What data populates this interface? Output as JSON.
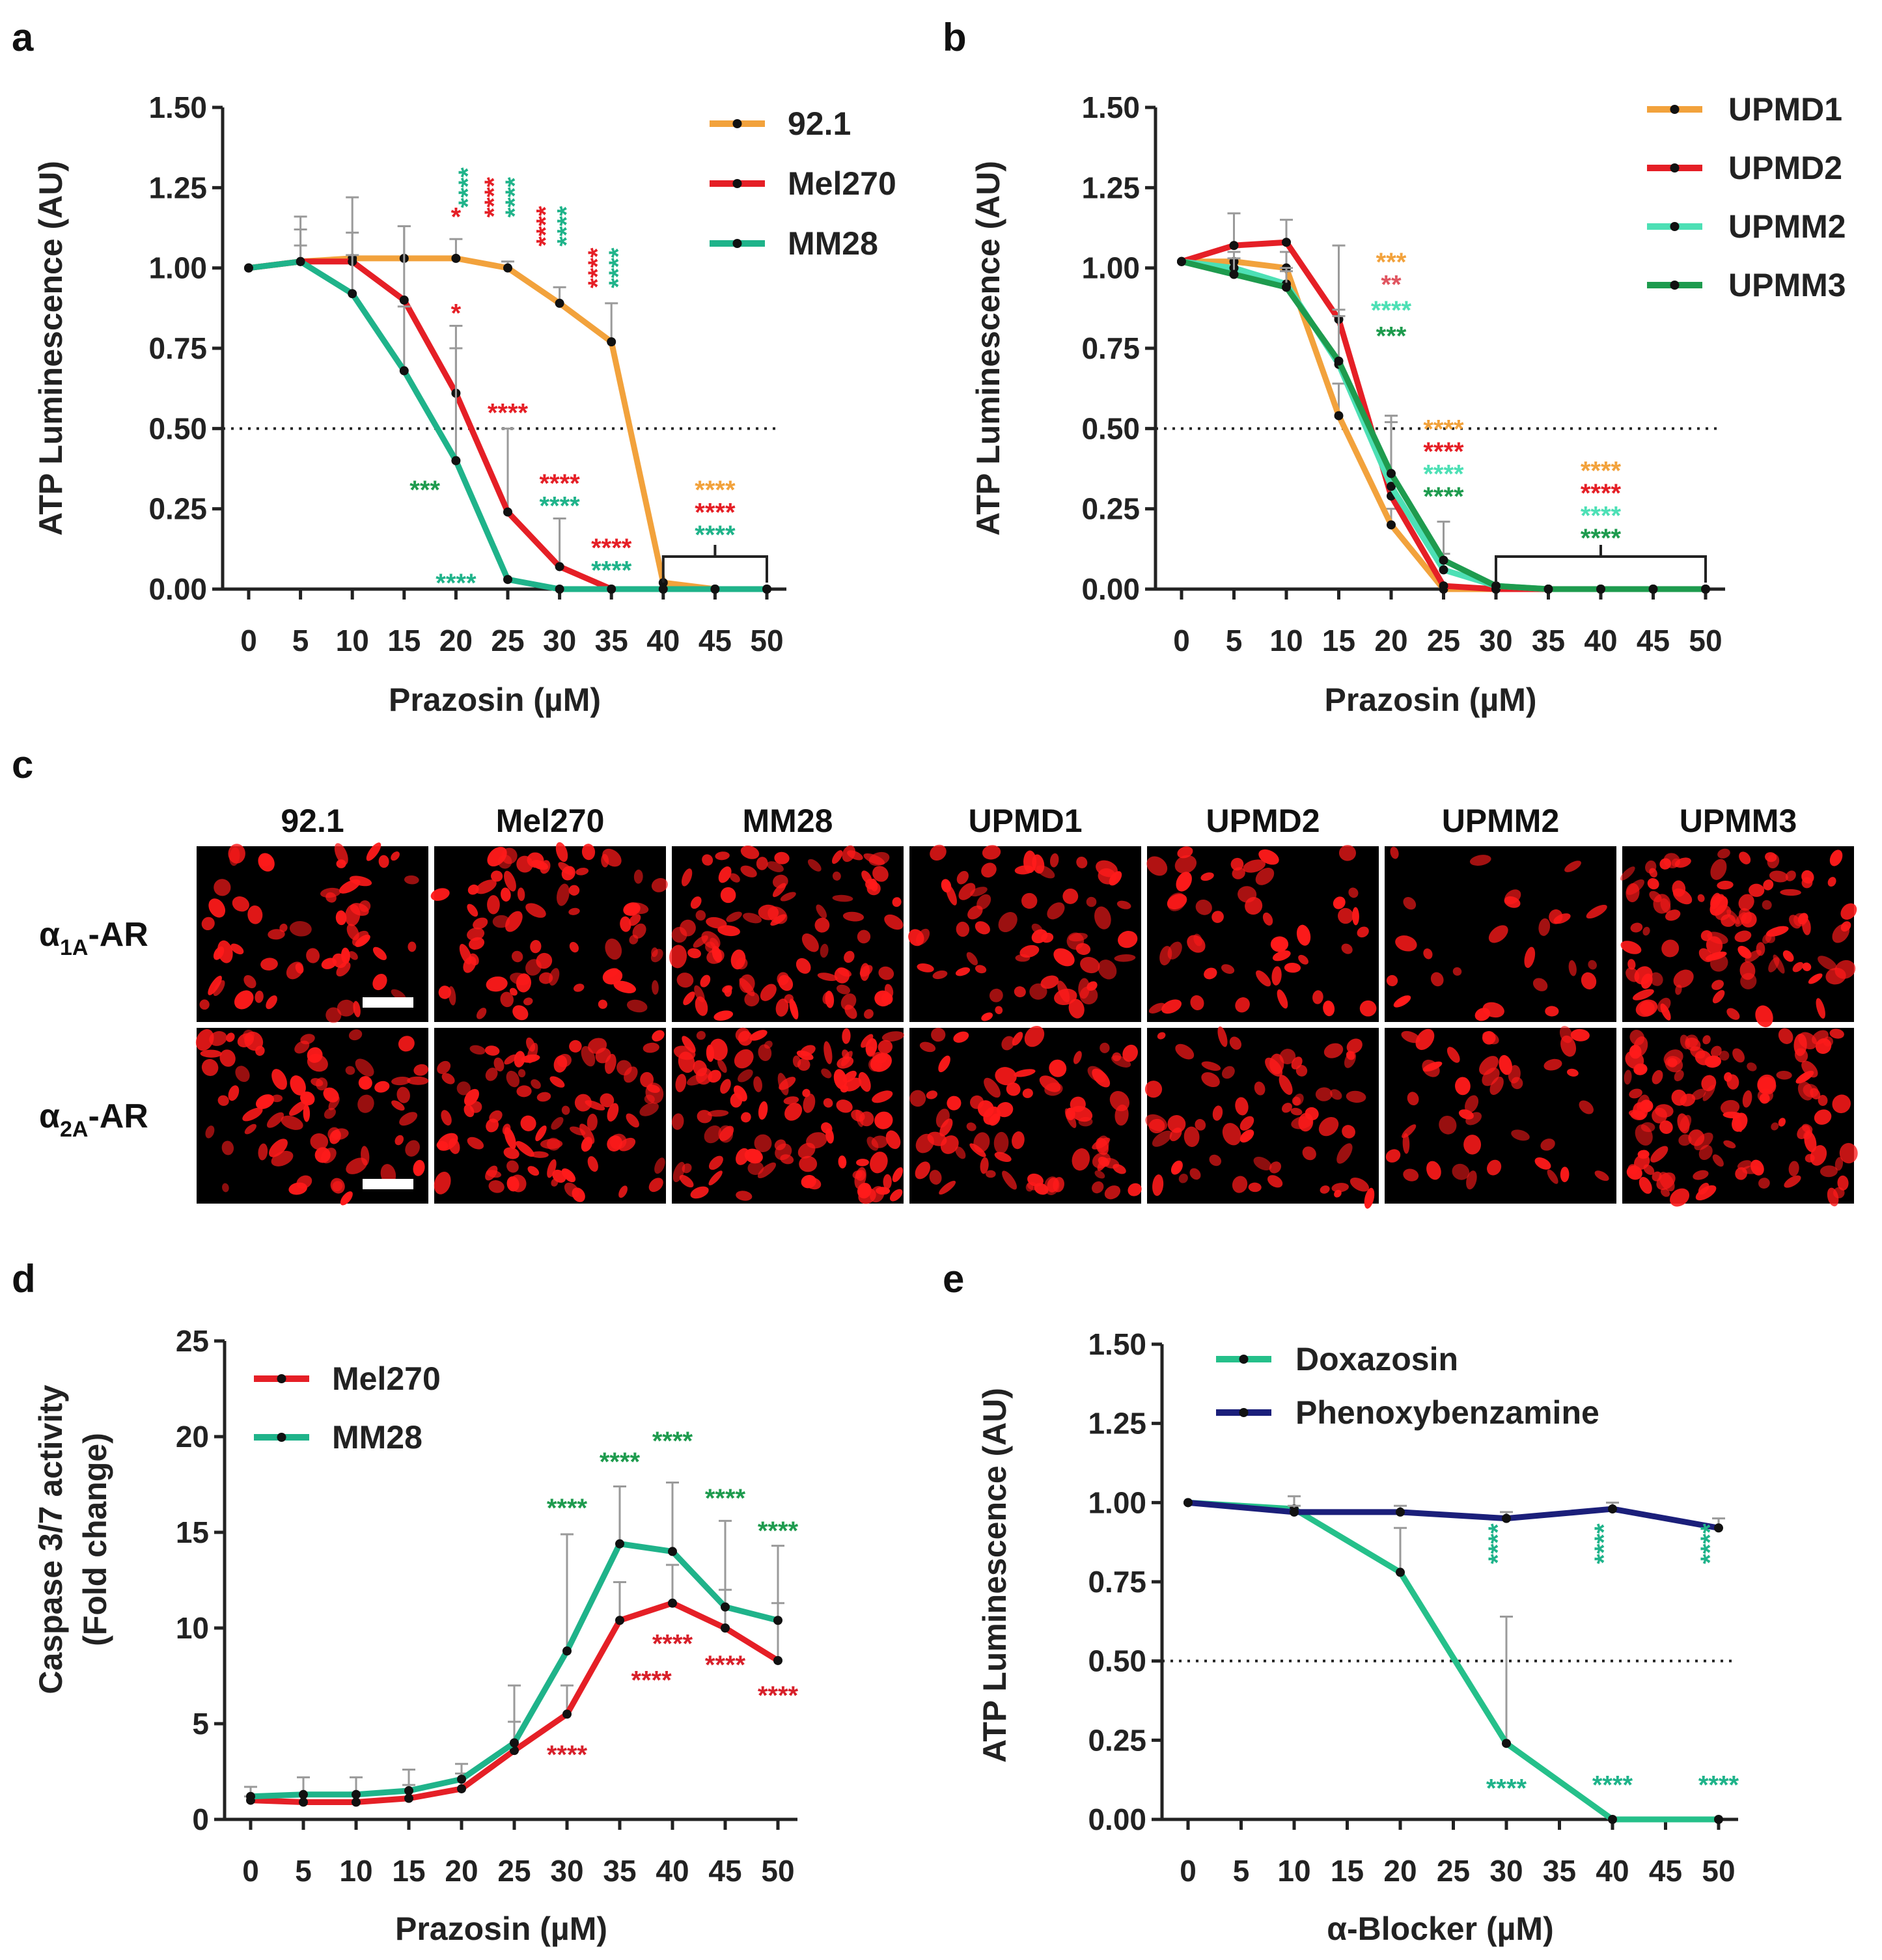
{
  "figure": {
    "panels": [
      {
        "letter": "a"
      },
      {
        "letter": "b"
      },
      {
        "letter": "c"
      },
      {
        "letter": "d"
      },
      {
        "letter": "e"
      }
    ]
  },
  "colors": {
    "92.1": "#f2a23c",
    "Mel270": "#e51f26",
    "MM28": "#1fb38a",
    "UPMD1": "#f2a23c",
    "UPMD2": "#e51f26",
    "UPMM2": "#4de0b5",
    "UPMM3": "#1e9b4e",
    "Doxazosin": "#25c08a",
    "Phenoxybenzamine": "#1b1f7a",
    "MM28_sig_d": "#1e9b4e",
    "Mel270_sig_d": "#d8202a",
    "MM28_sig_a": "#1e9b4e"
  },
  "chart_data": [
    {
      "panel": "a",
      "type": "line",
      "xlabel": "Prazosin (µM)",
      "ylabel": "ATP Luminescence (AU)",
      "x": [
        0,
        5,
        10,
        15,
        20,
        25,
        30,
        35,
        40,
        45,
        50
      ],
      "x_tick_labels": [
        "0",
        "5",
        "10",
        "15",
        "20",
        "25",
        "30",
        "35",
        "40",
        "45",
        "50"
      ],
      "ylim": [
        0,
        1.5
      ],
      "y_ticks": [
        0,
        0.25,
        0.5,
        0.75,
        1.0,
        1.25,
        1.5
      ],
      "y_tick_labels": [
        "0.00",
        "0.25",
        "0.50",
        "0.75",
        "1.00",
        "1.25",
        "1.50"
      ],
      "reference_line": 0.5,
      "legend": [
        "92.1",
        "Mel270",
        "MM28"
      ],
      "series": [
        {
          "name": "92.1",
          "values": [
            1.0,
            1.02,
            1.03,
            1.03,
            1.03,
            1.0,
            0.89,
            0.77,
            0.02,
            0.0,
            0.0
          ],
          "errors": [
            0,
            0.05,
            0.08,
            0.1,
            0.06,
            0.02,
            0.05,
            0.12,
            0,
            0,
            0
          ]
        },
        {
          "name": "Mel270",
          "values": [
            1.0,
            1.02,
            1.02,
            0.9,
            0.61,
            0.24,
            0.07,
            0.0,
            0.0,
            0.0,
            0.0
          ],
          "errors": [
            0,
            0.1,
            0.2,
            0.23,
            0.21,
            0.26,
            0.15,
            0,
            0,
            0,
            0
          ]
        },
        {
          "name": "MM28",
          "values": [
            1.0,
            1.02,
            0.92,
            0.68,
            0.4,
            0.03,
            0.0,
            0.0,
            0.0,
            0.0,
            0.0
          ],
          "errors": [
            0,
            0.14,
            0.12,
            0.2,
            0.35,
            0,
            0,
            0,
            0,
            0,
            0
          ]
        }
      ],
      "annotations": [
        {
          "text": "*",
          "x": 20,
          "y": 1.16,
          "color": "#e51f26"
        },
        {
          "text": "****",
          "x": 22,
          "y": 1.25,
          "color": "#1fb38a",
          "vertical": true
        },
        {
          "text": "****",
          "x": 24.5,
          "y": 1.22,
          "color": "#e51f26",
          "vertical": true
        },
        {
          "text": "****",
          "x": 26.5,
          "y": 1.22,
          "color": "#1fb38a",
          "vertical": true
        },
        {
          "text": "****",
          "x": 29.5,
          "y": 1.13,
          "color": "#e51f26",
          "vertical": true
        },
        {
          "text": "****",
          "x": 31.5,
          "y": 1.13,
          "color": "#1fb38a",
          "vertical": true
        },
        {
          "text": "****",
          "x": 34.5,
          "y": 1.0,
          "color": "#e51f26",
          "vertical": true
        },
        {
          "text": "****",
          "x": 36.5,
          "y": 1.0,
          "color": "#1fb38a",
          "vertical": true
        },
        {
          "text": "*",
          "x": 20,
          "y": 0.86,
          "color": "#e51f26"
        },
        {
          "text": "****",
          "x": 25,
          "y": 0.55,
          "color": "#e51f26"
        },
        {
          "text": "***",
          "x": 17,
          "y": 0.31,
          "color": "#1e9b4e"
        },
        {
          "text": "****",
          "x": 30,
          "y": 0.33,
          "color": "#e51f26"
        },
        {
          "text": "****",
          "x": 30,
          "y": 0.26,
          "color": "#1fb38a"
        },
        {
          "text": "****",
          "x": 35,
          "y": 0.13,
          "color": "#e51f26"
        },
        {
          "text": "****",
          "x": 35,
          "y": 0.06,
          "color": "#1fb38a"
        },
        {
          "text": "****",
          "x": 20,
          "y": 0.02,
          "color": "#1fb38a"
        },
        {
          "text": "****",
          "x": 45,
          "y": 0.31,
          "color": "#f2a23c"
        },
        {
          "text": "****",
          "x": 45,
          "y": 0.24,
          "color": "#e51f26"
        },
        {
          "text": "****",
          "x": 45,
          "y": 0.17,
          "color": "#1fb38a"
        }
      ],
      "bracket": {
        "x_from": 40,
        "x_to": 50
      }
    },
    {
      "panel": "b",
      "type": "line",
      "xlabel": "Prazosin (µM)",
      "ylabel": "ATP Luminescence (AU)",
      "x": [
        0,
        5,
        10,
        15,
        20,
        25,
        30,
        35,
        40,
        45,
        50
      ],
      "x_tick_labels": [
        "0",
        "5",
        "10",
        "15",
        "20",
        "25",
        "30",
        "35",
        "40",
        "45",
        "50"
      ],
      "ylim": [
        0,
        1.5
      ],
      "y_ticks": [
        0,
        0.25,
        0.5,
        0.75,
        1.0,
        1.25,
        1.5
      ],
      "y_tick_labels": [
        "0.00",
        "0.25",
        "0.50",
        "0.75",
        "1.00",
        "1.25",
        "1.50"
      ],
      "reference_line": 0.5,
      "legend": [
        "UPMD1",
        "UPMD2",
        "UPMM2",
        "UPMM3"
      ],
      "series": [
        {
          "name": "UPMD1",
          "values": [
            1.02,
            1.02,
            1.0,
            0.54,
            0.2,
            0.0,
            0.0,
            0.0,
            0.0,
            0.0,
            0.0
          ],
          "errors": [
            0,
            0.03,
            0.05,
            0.1,
            0.05,
            0,
            0,
            0,
            0,
            0,
            0
          ]
        },
        {
          "name": "UPMD2",
          "values": [
            1.02,
            1.07,
            1.08,
            0.84,
            0.29,
            0.01,
            0.0,
            0.0,
            0.0,
            0.0,
            0.0
          ],
          "errors": [
            0,
            0.1,
            0.07,
            0.23,
            0.25,
            0,
            0,
            0,
            0,
            0,
            0
          ]
        },
        {
          "name": "UPMM2",
          "values": [
            1.02,
            1.0,
            0.95,
            0.7,
            0.32,
            0.06,
            0.01,
            0.0,
            0.0,
            0.0,
            0.0
          ],
          "errors": [
            0,
            0.05,
            0.05,
            0.15,
            0.2,
            0.05,
            0,
            0,
            0,
            0,
            0
          ]
        },
        {
          "name": "UPMM3",
          "values": [
            1.02,
            0.98,
            0.94,
            0.71,
            0.36,
            0.09,
            0.01,
            0.0,
            0.0,
            0.0,
            0.0
          ],
          "errors": [
            0,
            0.05,
            0.05,
            0.16,
            0.18,
            0.12,
            0,
            0,
            0,
            0,
            0
          ]
        }
      ],
      "annotations": [
        {
          "text": "***",
          "x": 20,
          "y": 1.02,
          "color": "#f2a23c"
        },
        {
          "text": "**",
          "x": 20,
          "y": 0.95,
          "color": "#e05560"
        },
        {
          "text": "****",
          "x": 20,
          "y": 0.87,
          "color": "#4de0b5"
        },
        {
          "text": "***",
          "x": 20,
          "y": 0.79,
          "color": "#1e9b4e"
        },
        {
          "text": "****",
          "x": 25,
          "y": 0.5,
          "color": "#f2a23c"
        },
        {
          "text": "****",
          "x": 25,
          "y": 0.43,
          "color": "#e51f26"
        },
        {
          "text": "****",
          "x": 25,
          "y": 0.36,
          "color": "#4de0b5"
        },
        {
          "text": "****",
          "x": 25,
          "y": 0.29,
          "color": "#1e9b4e"
        },
        {
          "text": "****",
          "x": 40,
          "y": 0.37,
          "color": "#f2a23c"
        },
        {
          "text": "****",
          "x": 40,
          "y": 0.3,
          "color": "#e51f26"
        },
        {
          "text": "****",
          "x": 40,
          "y": 0.23,
          "color": "#4de0b5"
        },
        {
          "text": "****",
          "x": 40,
          "y": 0.16,
          "color": "#1e9b4e"
        }
      ],
      "bracket": {
        "x_from": 30,
        "x_to": 50
      }
    },
    {
      "panel": "d",
      "type": "line",
      "xlabel": "Prazosin (µM)",
      "ylabel_lines": [
        "Caspase 3/7 activity",
        "(Fold change)"
      ],
      "x": [
        0,
        5,
        10,
        15,
        20,
        25,
        30,
        35,
        40,
        45,
        50
      ],
      "x_tick_labels": [
        "0",
        "5",
        "10",
        "15",
        "20",
        "25",
        "30",
        "35",
        "40",
        "45",
        "50"
      ],
      "ylim": [
        0,
        25
      ],
      "y_ticks": [
        0,
        5,
        10,
        15,
        20,
        25
      ],
      "y_tick_labels": [
        "0",
        "5",
        "10",
        "15",
        "20",
        "25"
      ],
      "legend": [
        "Mel270",
        "MM28"
      ],
      "series": [
        {
          "name": "Mel270",
          "values": [
            1.0,
            0.9,
            0.9,
            1.1,
            1.6,
            3.6,
            5.5,
            10.4,
            11.3,
            10.0,
            8.3
          ],
          "errors": [
            0.2,
            0.4,
            0.5,
            0.7,
            0.8,
            1.5,
            1.5,
            2.0,
            2.0,
            2.0,
            3.0
          ]
        },
        {
          "name": "MM28",
          "values": [
            1.2,
            1.3,
            1.3,
            1.5,
            2.1,
            4.0,
            8.8,
            14.4,
            14.0,
            11.1,
            10.4
          ],
          "errors": [
            0.5,
            0.9,
            0.9,
            1.1,
            0.8,
            3.0,
            6.1,
            3.0,
            3.6,
            4.5,
            3.9
          ]
        }
      ],
      "annotations": [
        {
          "text": "****",
          "x": 30,
          "y": 16.3,
          "color": "#1e9b4e"
        },
        {
          "text": "****",
          "x": 35,
          "y": 18.7,
          "color": "#1e9b4e"
        },
        {
          "text": "****",
          "x": 40,
          "y": 19.8,
          "color": "#1e9b4e"
        },
        {
          "text": "****",
          "x": 45,
          "y": 16.8,
          "color": "#1e9b4e"
        },
        {
          "text": "****",
          "x": 50,
          "y": 15.1,
          "color": "#1e9b4e"
        },
        {
          "text": "****",
          "x": 30,
          "y": 3.4,
          "color": "#d8202a"
        },
        {
          "text": "****",
          "x": 38,
          "y": 7.3,
          "color": "#d8202a"
        },
        {
          "text": "****",
          "x": 40,
          "y": 9.2,
          "color": "#d8202a"
        },
        {
          "text": "****",
          "x": 45,
          "y": 8.1,
          "color": "#d8202a"
        },
        {
          "text": "****",
          "x": 50,
          "y": 6.5,
          "color": "#d8202a"
        }
      ]
    },
    {
      "panel": "e",
      "type": "line",
      "xlabel": "α-Blocker (µM)",
      "ylabel": "ATP Luminescence (AU)",
      "x_tick_labels": [
        "0",
        "5",
        "10",
        "15",
        "20",
        "25",
        "30",
        "35",
        "40",
        "45",
        "50"
      ],
      "x_ticks": [
        0,
        5,
        10,
        15,
        20,
        25,
        30,
        35,
        40,
        45,
        50
      ],
      "ylim": [
        0,
        1.5
      ],
      "y_ticks": [
        0,
        0.25,
        0.5,
        0.75,
        1.0,
        1.25,
        1.5
      ],
      "y_tick_labels": [
        "0.00",
        "0.25",
        "0.50",
        "0.75",
        "1.00",
        "1.25",
        "1.50"
      ],
      "reference_line": 0.5,
      "legend": [
        "Doxazosin",
        "Phenoxybenzamine"
      ],
      "series": [
        {
          "name": "Doxazosin",
          "x": [
            0,
            10,
            20,
            30,
            40,
            50
          ],
          "values": [
            1.0,
            0.98,
            0.78,
            0.24,
            0.0,
            0.0
          ],
          "errors": [
            0,
            0.04,
            0.14,
            0.4,
            0,
            0
          ]
        },
        {
          "name": "Phenoxybenzamine",
          "x": [
            0,
            10,
            20,
            30,
            40,
            50
          ],
          "values": [
            1.0,
            0.97,
            0.97,
            0.95,
            0.98,
            0.92
          ],
          "errors": [
            0,
            0.02,
            0.02,
            0.02,
            0.02,
            0.03
          ]
        }
      ],
      "annotations": [
        {
          "text": "****",
          "x": 30,
          "y": 0.87,
          "color": "#1fb38a",
          "vertical": true
        },
        {
          "text": "****",
          "x": 40,
          "y": 0.87,
          "color": "#1fb38a",
          "vertical": true
        },
        {
          "text": "****",
          "x": 50,
          "y": 0.87,
          "color": "#1fb38a",
          "vertical": true
        },
        {
          "text": "****",
          "x": 30,
          "y": 0.1,
          "color": "#1fb38a"
        },
        {
          "text": "****",
          "x": 40,
          "y": 0.11,
          "color": "#1fb38a"
        },
        {
          "text": "****",
          "x": 50,
          "y": 0.11,
          "color": "#1fb38a"
        }
      ]
    }
  ],
  "micrographs": {
    "columns": [
      "92.1",
      "Mel270",
      "MM28",
      "UPMD1",
      "UPMD2",
      "UPMM2",
      "UPMM3"
    ],
    "rows": [
      {
        "main": "α",
        "sub": "1A",
        "suffix": "-AR"
      },
      {
        "main": "α",
        "sub": "2A",
        "suffix": "-AR"
      }
    ],
    "stain_color": "#ff1a1a",
    "background_color": "#000000",
    "scale_bar_color": "#ffffff"
  }
}
